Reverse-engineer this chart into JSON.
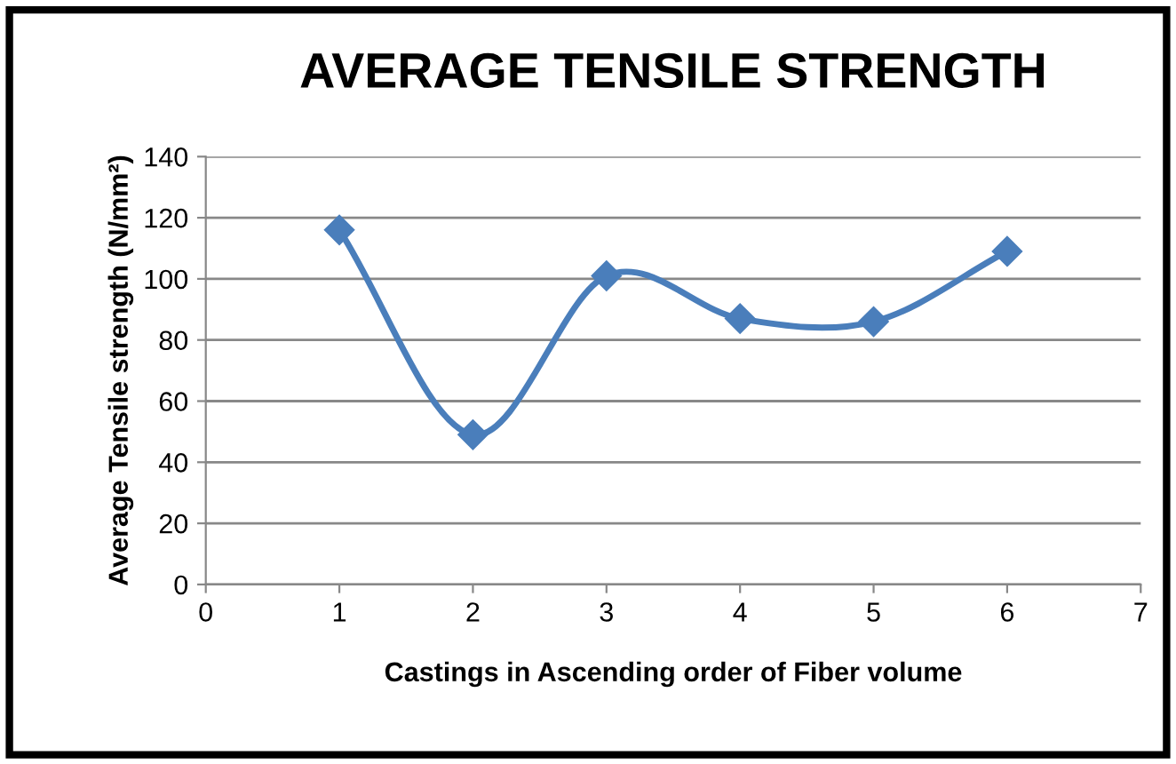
{
  "chart_data": {
    "type": "line",
    "title": "AVERAGE TENSILE STRENGTH",
    "xlabel": "Castings in Ascending order of Fiber volume",
    "ylabel": "Average Tensile strength (N/mm²)",
    "x": [
      1,
      2,
      3,
      4,
      5,
      6
    ],
    "series": [
      {
        "color": "#4a7ebb",
        "values": [
          116,
          49,
          101,
          87,
          86,
          109
        ]
      }
    ],
    "xlim": [
      0,
      7
    ],
    "xticks": [
      0,
      1,
      2,
      3,
      4,
      5,
      6,
      7
    ],
    "ylim": [
      0,
      140
    ],
    "yticks": [
      0,
      20,
      40,
      60,
      80,
      100,
      120,
      140
    ],
    "grid": "y",
    "marker": "diamond",
    "line_style": "solid",
    "legend": false
  }
}
